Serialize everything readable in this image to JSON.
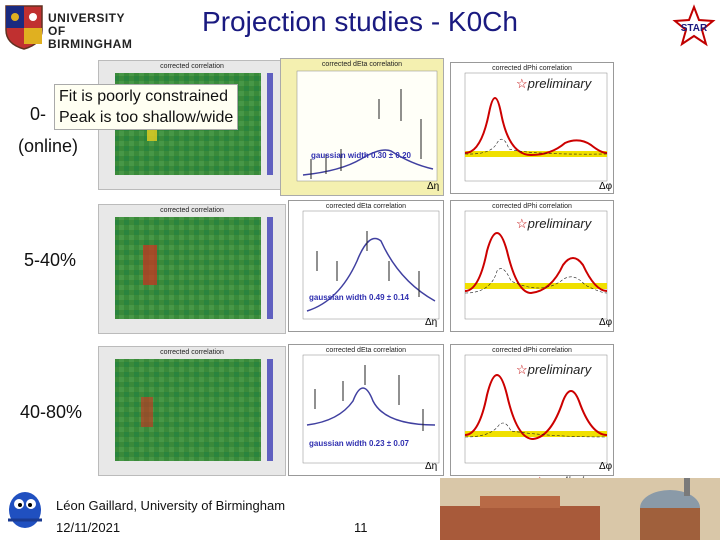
{
  "slide": {
    "title": "Projection studies - K0Ch",
    "institution_line1": "UNIVERSITY OF",
    "institution_line2": "BIRMINGHAM",
    "star_label": "STAR"
  },
  "callout": {
    "line1": "Fit is poorly constrained",
    "line2": "Peak is too shallow/wide"
  },
  "rows": [
    {
      "label": "0-",
      "sublabel": "(online)",
      "hist_title": "corrected correlation",
      "deta_title": "corrected dEta correlation",
      "dphi_title": "corrected dPhi correlation",
      "fit_text": "gaussian width 0.30 ± 0.20",
      "preliminary": "preliminary"
    },
    {
      "label": "5-40%",
      "sublabel": "",
      "hist_title": "corrected correlation",
      "deta_title": "corrected dEta correlation",
      "dphi_title": "corrected dPhi correlation",
      "fit_text": "gaussian width 0.49 ± 0.14",
      "preliminary": "preliminary"
    },
    {
      "label": "40-80%",
      "sublabel": "",
      "hist_title": "corrected correlation",
      "deta_title": "corrected dEta correlation",
      "dphi_title": "corrected dPhi correlation",
      "fit_text": "gaussian width 0.23 ± 0.07",
      "preliminary": "preliminary"
    }
  ],
  "axis_labels": {
    "dphi": "Δφ",
    "deta": "Δη"
  },
  "bottom_preliminary": "preliminary",
  "footer": {
    "author": "Léon Gaillard, University of Birmingham",
    "date": "12/11/2021",
    "page": "11"
  },
  "colors": {
    "title": "#1a1a80",
    "fit_line": "#cc0000",
    "gauss_line": "#4040a0",
    "band": "#f0e000",
    "highlight_panel": "#f4f0b0"
  }
}
